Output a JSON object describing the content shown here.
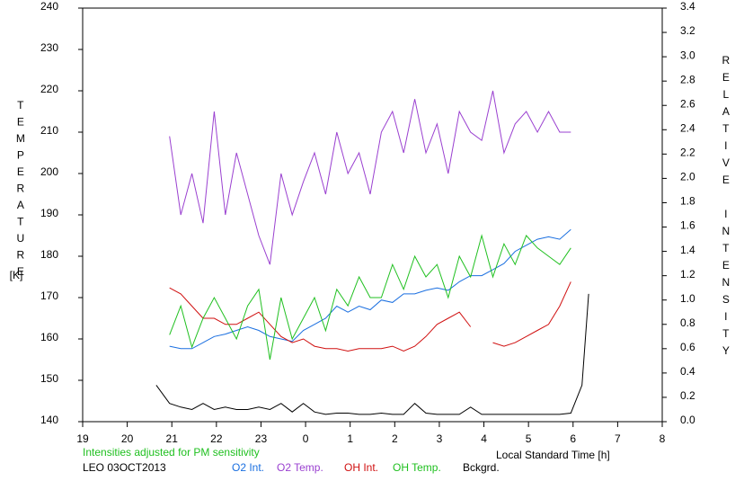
{
  "chart_data": {
    "type": "line",
    "xlabel": "Local Standard Time [h]",
    "ylabel": "TEMPERATURE",
    "ylabel_unit": "[K]",
    "y2label": "RELATIVE INTENSITY",
    "note": "Intensities adjusted for PM sensitivity",
    "station": "LEO 03OCT2013",
    "xlim": [
      19,
      32
    ],
    "xticks": [
      19,
      20,
      21,
      22,
      23,
      {
        "value": 24,
        "label": "0"
      },
      {
        "value": 25,
        "label": "1"
      },
      {
        "value": 26,
        "label": "2"
      },
      {
        "value": 27,
        "label": "3"
      },
      {
        "value": 28,
        "label": "4"
      },
      {
        "value": 29,
        "label": "5"
      },
      {
        "value": 30,
        "label": "6"
      },
      {
        "value": 31,
        "label": "7"
      },
      {
        "value": 32,
        "label": "8"
      }
    ],
    "ylim": [
      140,
      240
    ],
    "yticks": [
      140,
      150,
      160,
      170,
      180,
      190,
      200,
      210,
      220,
      230,
      240
    ],
    "y2lim": [
      0,
      3.4
    ],
    "y2ticks": [
      {
        "value": 0,
        "label": "0.0"
      },
      0.2,
      0.4,
      0.6,
      0.8,
      {
        "value": 1,
        "label": "1.0"
      },
      1.2,
      1.4,
      1.6,
      1.8,
      {
        "value": 2,
        "label": "2.0"
      },
      2.2,
      2.4,
      2.6,
      2.8,
      {
        "value": 3,
        "label": "3.0"
      },
      3.2,
      3.4
    ],
    "x": [
      20.65,
      20.95,
      21.2,
      21.45,
      21.7,
      21.95,
      22.2,
      22.45,
      22.7,
      22.95,
      23.2,
      23.45,
      23.7,
      23.95,
      24.2,
      24.45,
      24.7,
      24.95,
      25.2,
      25.45,
      25.7,
      25.95,
      26.2,
      26.45,
      26.7,
      26.95,
      27.2,
      27.45,
      27.7,
      27.95,
      28.2,
      28.45,
      28.7,
      28.95,
      29.2,
      29.45,
      29.7,
      29.95,
      30.2,
      30.35
    ],
    "series": [
      {
        "name": "O2 Int.",
        "color": "#1a6fe0",
        "axis": "y2",
        "values": [
          null,
          0.62,
          0.6,
          0.6,
          0.65,
          0.7,
          0.72,
          0.75,
          0.78,
          0.75,
          0.7,
          0.68,
          0.66,
          0.75,
          0.8,
          0.85,
          0.95,
          0.9,
          0.95,
          0.92,
          1.0,
          0.98,
          1.05,
          1.05,
          1.08,
          1.1,
          1.08,
          1.15,
          1.2,
          1.2,
          1.25,
          1.3,
          1.4,
          1.45,
          1.5,
          1.52,
          1.5,
          1.58,
          null,
          null
        ]
      },
      {
        "name": "O2 Temp.",
        "color": "#9a40d0",
        "values": [
          null,
          209,
          190,
          200,
          188,
          215,
          190,
          205,
          195,
          185,
          178,
          200,
          190,
          198,
          205,
          195,
          210,
          200,
          205,
          195,
          210,
          215,
          205,
          218,
          205,
          212,
          200,
          215,
          210,
          208,
          220,
          205,
          212,
          215,
          210,
          215,
          210,
          210,
          null,
          null
        ]
      },
      {
        "name": "OH Int.",
        "color": "#d01010",
        "axis": "y2",
        "values": [
          null,
          1.1,
          1.05,
          0.95,
          0.85,
          0.85,
          0.8,
          0.8,
          0.85,
          0.9,
          0.8,
          0.7,
          0.65,
          0.68,
          0.62,
          0.6,
          0.6,
          0.58,
          0.6,
          0.6,
          0.6,
          0.62,
          0.58,
          0.62,
          0.7,
          0.8,
          0.85,
          0.9,
          0.78,
          null,
          0.65,
          0.62,
          0.65,
          0.7,
          0.75,
          0.8,
          0.95,
          1.15,
          null,
          null
        ]
      },
      {
        "name": "OH Temp.",
        "color": "#20c020",
        "values": [
          null,
          161,
          168,
          158,
          165,
          170,
          165,
          160,
          168,
          172,
          155,
          170,
          160,
          165,
          170,
          162,
          172,
          168,
          175,
          170,
          170,
          178,
          172,
          180,
          175,
          178,
          170,
          180,
          175,
          185,
          175,
          183,
          178,
          185,
          182,
          180,
          178,
          182,
          null,
          null
        ]
      },
      {
        "name": "Bckgrd.",
        "color": "#000000",
        "axis": "y2",
        "values": [
          0.3,
          0.15,
          0.12,
          0.1,
          0.15,
          0.1,
          0.12,
          0.1,
          0.1,
          0.12,
          0.1,
          0.15,
          0.08,
          0.15,
          0.08,
          0.06,
          0.07,
          0.07,
          0.06,
          0.06,
          0.07,
          0.06,
          0.06,
          0.15,
          0.07,
          0.06,
          0.06,
          0.06,
          0.12,
          0.06,
          0.06,
          0.06,
          0.06,
          0.06,
          0.06,
          0.06,
          0.06,
          0.07,
          0.3,
          1.05
        ]
      }
    ]
  }
}
